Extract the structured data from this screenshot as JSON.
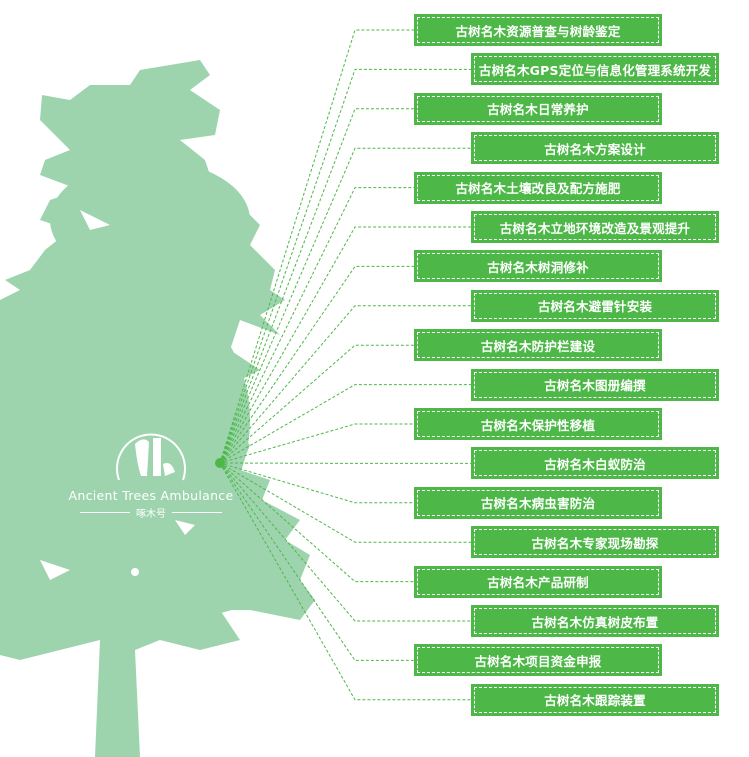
{
  "colors": {
    "tree": "#9dd4ae",
    "box": "#4db848",
    "line": "#4db848"
  },
  "logo": {
    "english": "Ancient Trees Ambulance",
    "chinese": "啄木号",
    "icon": "woodpecker-tree-logo"
  },
  "items": [
    "古树名木资源普查与树龄鉴定",
    "古树名木GPS定位与信息化管理系统开发",
    "古树名木日常养护",
    "古树名木方案设计",
    "古树名木土壤改良及配方施肥",
    "古树名木立地环境改造及景观提升",
    "古树名木树洞修补",
    "古树名木避雷针安装",
    "古树名木防护栏建设",
    "古树名木图册编撰",
    "古树名木保护性移植",
    "古树名木白蚁防治",
    "古树名木病虫害防治",
    "古树名木专家现场勘探",
    "古树名木产品研制",
    "古树名木仿真树皮布置",
    "古树名木项目资金申报",
    "古树名木跟踪装置"
  ]
}
